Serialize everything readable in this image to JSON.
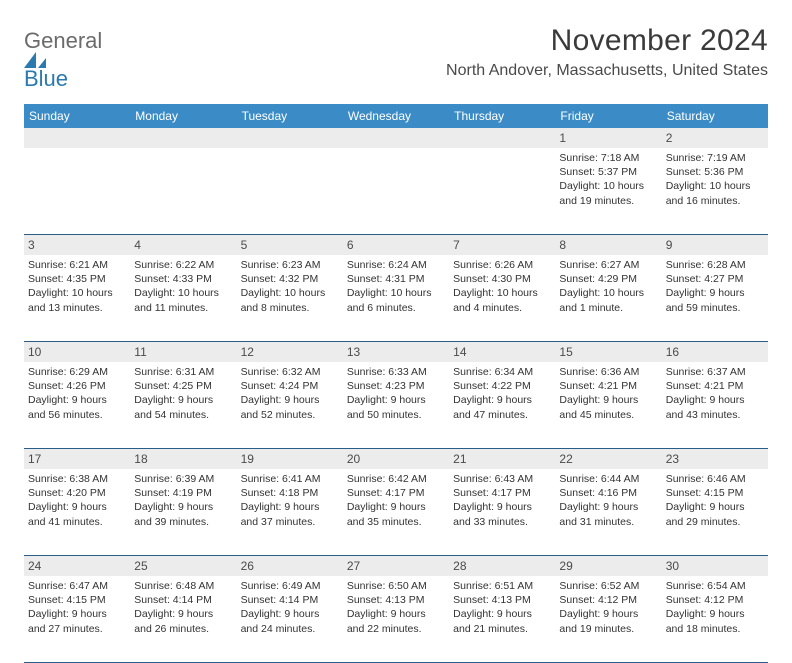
{
  "logo": {
    "general": "General",
    "blue": "Blue",
    "mark_color": "#2a7ab0"
  },
  "title": "November 2024",
  "location": "North Andover, Massachusetts, United States",
  "colors": {
    "header_bg": "#3b8cc6",
    "header_text": "#ffffff",
    "daynum_bg": "#ececec",
    "daynum_text": "#4b4b4b",
    "row_border": "#2a5d88",
    "body_text": "#333333",
    "title_text": "#3a3a3a"
  },
  "day_names": [
    "Sunday",
    "Monday",
    "Tuesday",
    "Wednesday",
    "Thursday",
    "Friday",
    "Saturday"
  ],
  "weeks": [
    [
      {
        "n": "",
        "sr": "",
        "ss": "",
        "dl": ""
      },
      {
        "n": "",
        "sr": "",
        "ss": "",
        "dl": ""
      },
      {
        "n": "",
        "sr": "",
        "ss": "",
        "dl": ""
      },
      {
        "n": "",
        "sr": "",
        "ss": "",
        "dl": ""
      },
      {
        "n": "",
        "sr": "",
        "ss": "",
        "dl": ""
      },
      {
        "n": "1",
        "sr": "Sunrise: 7:18 AM",
        "ss": "Sunset: 5:37 PM",
        "dl": "Daylight: 10 hours and 19 minutes."
      },
      {
        "n": "2",
        "sr": "Sunrise: 7:19 AM",
        "ss": "Sunset: 5:36 PM",
        "dl": "Daylight: 10 hours and 16 minutes."
      }
    ],
    [
      {
        "n": "3",
        "sr": "Sunrise: 6:21 AM",
        "ss": "Sunset: 4:35 PM",
        "dl": "Daylight: 10 hours and 13 minutes."
      },
      {
        "n": "4",
        "sr": "Sunrise: 6:22 AM",
        "ss": "Sunset: 4:33 PM",
        "dl": "Daylight: 10 hours and 11 minutes."
      },
      {
        "n": "5",
        "sr": "Sunrise: 6:23 AM",
        "ss": "Sunset: 4:32 PM",
        "dl": "Daylight: 10 hours and 8 minutes."
      },
      {
        "n": "6",
        "sr": "Sunrise: 6:24 AM",
        "ss": "Sunset: 4:31 PM",
        "dl": "Daylight: 10 hours and 6 minutes."
      },
      {
        "n": "7",
        "sr": "Sunrise: 6:26 AM",
        "ss": "Sunset: 4:30 PM",
        "dl": "Daylight: 10 hours and 4 minutes."
      },
      {
        "n": "8",
        "sr": "Sunrise: 6:27 AM",
        "ss": "Sunset: 4:29 PM",
        "dl": "Daylight: 10 hours and 1 minute."
      },
      {
        "n": "9",
        "sr": "Sunrise: 6:28 AM",
        "ss": "Sunset: 4:27 PM",
        "dl": "Daylight: 9 hours and 59 minutes."
      }
    ],
    [
      {
        "n": "10",
        "sr": "Sunrise: 6:29 AM",
        "ss": "Sunset: 4:26 PM",
        "dl": "Daylight: 9 hours and 56 minutes."
      },
      {
        "n": "11",
        "sr": "Sunrise: 6:31 AM",
        "ss": "Sunset: 4:25 PM",
        "dl": "Daylight: 9 hours and 54 minutes."
      },
      {
        "n": "12",
        "sr": "Sunrise: 6:32 AM",
        "ss": "Sunset: 4:24 PM",
        "dl": "Daylight: 9 hours and 52 minutes."
      },
      {
        "n": "13",
        "sr": "Sunrise: 6:33 AM",
        "ss": "Sunset: 4:23 PM",
        "dl": "Daylight: 9 hours and 50 minutes."
      },
      {
        "n": "14",
        "sr": "Sunrise: 6:34 AM",
        "ss": "Sunset: 4:22 PM",
        "dl": "Daylight: 9 hours and 47 minutes."
      },
      {
        "n": "15",
        "sr": "Sunrise: 6:36 AM",
        "ss": "Sunset: 4:21 PM",
        "dl": "Daylight: 9 hours and 45 minutes."
      },
      {
        "n": "16",
        "sr": "Sunrise: 6:37 AM",
        "ss": "Sunset: 4:21 PM",
        "dl": "Daylight: 9 hours and 43 minutes."
      }
    ],
    [
      {
        "n": "17",
        "sr": "Sunrise: 6:38 AM",
        "ss": "Sunset: 4:20 PM",
        "dl": "Daylight: 9 hours and 41 minutes."
      },
      {
        "n": "18",
        "sr": "Sunrise: 6:39 AM",
        "ss": "Sunset: 4:19 PM",
        "dl": "Daylight: 9 hours and 39 minutes."
      },
      {
        "n": "19",
        "sr": "Sunrise: 6:41 AM",
        "ss": "Sunset: 4:18 PM",
        "dl": "Daylight: 9 hours and 37 minutes."
      },
      {
        "n": "20",
        "sr": "Sunrise: 6:42 AM",
        "ss": "Sunset: 4:17 PM",
        "dl": "Daylight: 9 hours and 35 minutes."
      },
      {
        "n": "21",
        "sr": "Sunrise: 6:43 AM",
        "ss": "Sunset: 4:17 PM",
        "dl": "Daylight: 9 hours and 33 minutes."
      },
      {
        "n": "22",
        "sr": "Sunrise: 6:44 AM",
        "ss": "Sunset: 4:16 PM",
        "dl": "Daylight: 9 hours and 31 minutes."
      },
      {
        "n": "23",
        "sr": "Sunrise: 6:46 AM",
        "ss": "Sunset: 4:15 PM",
        "dl": "Daylight: 9 hours and 29 minutes."
      }
    ],
    [
      {
        "n": "24",
        "sr": "Sunrise: 6:47 AM",
        "ss": "Sunset: 4:15 PM",
        "dl": "Daylight: 9 hours and 27 minutes."
      },
      {
        "n": "25",
        "sr": "Sunrise: 6:48 AM",
        "ss": "Sunset: 4:14 PM",
        "dl": "Daylight: 9 hours and 26 minutes."
      },
      {
        "n": "26",
        "sr": "Sunrise: 6:49 AM",
        "ss": "Sunset: 4:14 PM",
        "dl": "Daylight: 9 hours and 24 minutes."
      },
      {
        "n": "27",
        "sr": "Sunrise: 6:50 AM",
        "ss": "Sunset: 4:13 PM",
        "dl": "Daylight: 9 hours and 22 minutes."
      },
      {
        "n": "28",
        "sr": "Sunrise: 6:51 AM",
        "ss": "Sunset: 4:13 PM",
        "dl": "Daylight: 9 hours and 21 minutes."
      },
      {
        "n": "29",
        "sr": "Sunrise: 6:52 AM",
        "ss": "Sunset: 4:12 PM",
        "dl": "Daylight: 9 hours and 19 minutes."
      },
      {
        "n": "30",
        "sr": "Sunrise: 6:54 AM",
        "ss": "Sunset: 4:12 PM",
        "dl": "Daylight: 9 hours and 18 minutes."
      }
    ]
  ]
}
